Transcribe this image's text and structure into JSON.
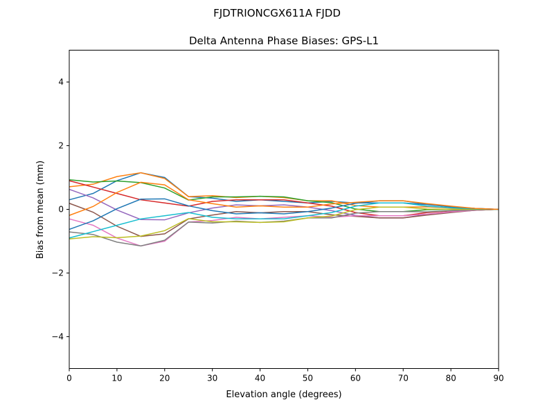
{
  "chart_data": {
    "type": "line",
    "suptitle": "FJDTRIONCGX611A FJDD",
    "title": "Delta Antenna Phase Biases: GPS-L1",
    "xlabel": "Elevation angle (degrees)",
    "ylabel": "Bias from mean (mm)",
    "xlim": [
      0,
      90
    ],
    "ylim": [
      -5,
      5
    ],
    "xticks": [
      0,
      10,
      20,
      30,
      40,
      50,
      60,
      70,
      80,
      90
    ],
    "yticks": [
      -4,
      -2,
      0,
      2,
      4
    ],
    "grid": false,
    "legend": "none",
    "x": [
      0,
      5,
      10,
      15,
      20,
      25,
      30,
      35,
      40,
      45,
      50,
      55,
      60,
      65,
      70,
      75,
      80,
      85,
      90
    ],
    "colors": [
      "#1f77b4",
      "#ff7f0e",
      "#2ca02c",
      "#d62728",
      "#9467bd",
      "#8c564b",
      "#e377c2",
      "#7f7f7f",
      "#bcbd22",
      "#17becf"
    ],
    "series": [
      {
        "values": [
          0.3,
          0.5,
          0.9,
          1.15,
          1.0,
          0.4,
          0.35,
          0.25,
          0.3,
          0.25,
          0.2,
          0.25,
          0.2,
          0.2,
          0.2,
          0.15,
          0.08,
          0.03,
          0
        ]
      },
      {
        "values": [
          0.71,
          0.79,
          1.03,
          1.15,
          0.97,
          0.4,
          0.43,
          0.37,
          0.41,
          0.37,
          0.27,
          0.27,
          0.12,
          0.07,
          0.07,
          0.08,
          0.04,
          0.02,
          0
        ]
      },
      {
        "values": [
          0.93,
          0.86,
          0.89,
          0.84,
          0.67,
          0.29,
          0.39,
          0.39,
          0.41,
          0.39,
          0.27,
          0.21,
          0.01,
          -0.07,
          -0.07,
          -0.01,
          0,
          0,
          0
        ]
      },
      {
        "values": [
          0.9,
          0.7,
          0.5,
          0.3,
          0.2,
          0.1,
          0.25,
          0.3,
          0.3,
          0.3,
          0.2,
          0.1,
          -0.1,
          -0.2,
          -0.2,
          -0.1,
          -0.05,
          -0.02,
          0
        ]
      },
      {
        "values": [
          0.63,
          0.36,
          -0.02,
          -0.32,
          -0.33,
          -0.11,
          0.04,
          0.14,
          0.11,
          0.14,
          0.07,
          -0.04,
          -0.19,
          -0.27,
          -0.27,
          -0.16,
          -0.08,
          -0.03,
          0
        ]
      },
      {
        "values": [
          0.19,
          -0.09,
          -0.53,
          -0.85,
          -0.77,
          -0.3,
          -0.18,
          -0.07,
          -0.11,
          -0.07,
          -0.07,
          -0.17,
          -0.22,
          -0.27,
          -0.27,
          -0.18,
          -0.1,
          -0.03,
          0
        ]
      },
      {
        "values": [
          -0.3,
          -0.5,
          -0.9,
          -1.15,
          -1.0,
          -0.4,
          -0.35,
          -0.25,
          -0.3,
          -0.25,
          -0.2,
          -0.25,
          -0.2,
          -0.2,
          -0.2,
          -0.15,
          -0.08,
          -0.03,
          0
        ]
      },
      {
        "values": [
          -0.71,
          -0.79,
          -1.03,
          -1.15,
          -0.97,
          -0.4,
          -0.43,
          -0.37,
          -0.41,
          -0.37,
          -0.27,
          -0.27,
          -0.12,
          -0.07,
          -0.07,
          -0.08,
          -0.04,
          -0.02,
          0
        ]
      },
      {
        "values": [
          -0.93,
          -0.86,
          -0.89,
          -0.84,
          -0.67,
          -0.29,
          -0.39,
          -0.39,
          -0.41,
          -0.39,
          -0.27,
          -0.21,
          -0.01,
          0.07,
          0.07,
          0.01,
          0,
          0,
          0
        ]
      },
      {
        "values": [
          -0.9,
          -0.7,
          -0.5,
          -0.3,
          -0.2,
          -0.1,
          -0.25,
          -0.3,
          -0.3,
          -0.3,
          -0.2,
          -0.1,
          0.1,
          0.2,
          0.2,
          0.1,
          0.05,
          0.02,
          0
        ]
      },
      {
        "values": [
          -0.63,
          -0.36,
          0.02,
          0.32,
          0.33,
          0.11,
          -0.04,
          -0.14,
          -0.11,
          -0.14,
          -0.07,
          0.04,
          0.19,
          0.27,
          0.27,
          0.16,
          0.08,
          0.03,
          0
        ]
      },
      {
        "values": [
          -0.19,
          0.09,
          0.53,
          0.85,
          0.77,
          0.3,
          0.18,
          0.07,
          0.11,
          0.07,
          0.07,
          0.17,
          0.22,
          0.27,
          0.27,
          0.18,
          0.1,
          0.03,
          0
        ]
      }
    ]
  }
}
